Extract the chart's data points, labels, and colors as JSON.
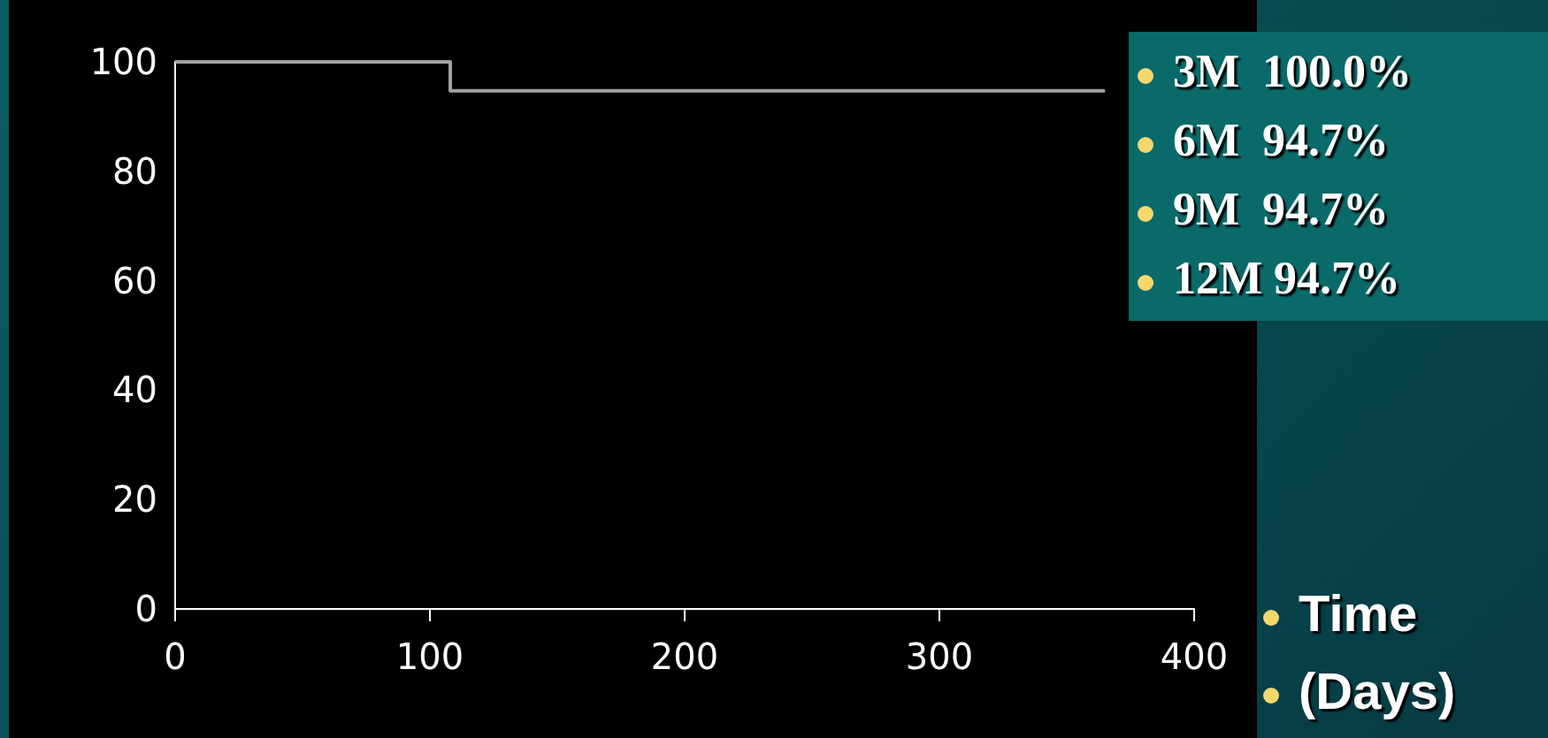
{
  "chart_data": {
    "type": "step",
    "x": [
      0,
      108,
      365
    ],
    "values": [
      100,
      94.7,
      94.7
    ],
    "color": "#a0a0a0",
    "xlim": [
      0,
      400
    ],
    "xticks": [
      0,
      100,
      200,
      300,
      400
    ],
    "ylim": [
      0,
      100
    ],
    "yticks": [
      0,
      20,
      40,
      60,
      80,
      100
    ],
    "grid": false,
    "marker": "none",
    "line_style": "solid",
    "xlabel": "Time (Days)",
    "annotations": [
      "3M  100.0%",
      "6M  94.7%",
      "9M  94.7%",
      "12M 94.7%"
    ]
  }
}
